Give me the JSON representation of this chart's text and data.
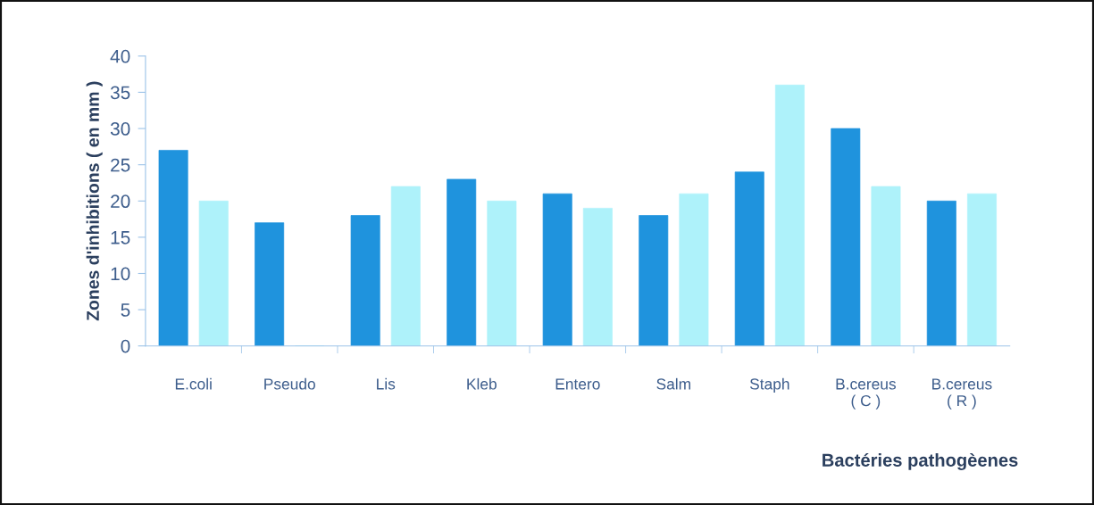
{
  "chart_data": {
    "type": "bar",
    "categories": [
      "E.coli",
      "Pseudo",
      "Lis",
      "Kleb",
      "Entero",
      "Salm",
      "Staph",
      "B.cereus\n( C )",
      "B.cereus\n( R )"
    ],
    "series": [
      {
        "color": "#1f93dd",
        "values": [
          27,
          17,
          18,
          23,
          21,
          18,
          24,
          30,
          20
        ]
      },
      {
        "color": "#aef2fa",
        "values": [
          20,
          0,
          22,
          20,
          19,
          21,
          36,
          22,
          21
        ]
      }
    ],
    "xlabel": "Bactéries pathogèenes",
    "ylabel": "Zones d'inhibitions ( en mm )",
    "ylim": [
      0,
      40
    ],
    "yticks": [
      0,
      5,
      10,
      15,
      20,
      25,
      30,
      35,
      40
    ]
  }
}
